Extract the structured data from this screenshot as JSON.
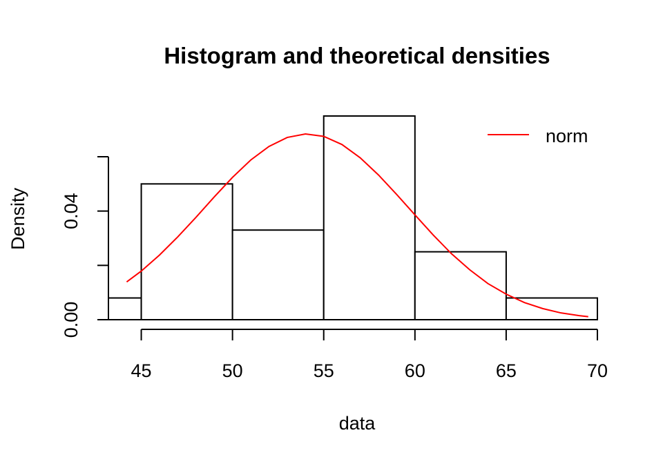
{
  "chart_data": {
    "type": "histogram",
    "title": "Histogram and theoretical densities",
    "xlabel": "data",
    "ylabel": "Density",
    "xlim": [
      43.2,
      70
    ],
    "ylim": [
      0,
      0.075
    ],
    "x_ticks": [
      45,
      50,
      55,
      60,
      65,
      70
    ],
    "x_tick_labels": [
      "45",
      "50",
      "55",
      "60",
      "65",
      "70"
    ],
    "y_ticks": [
      0,
      0.02,
      0.04,
      0.06
    ],
    "y_tick_labels": [
      "0.00",
      "",
      "0.04",
      ""
    ],
    "bins": [
      {
        "start": 43.2,
        "end": 45,
        "density": 0.008
      },
      {
        "start": 45,
        "end": 50,
        "density": 0.05
      },
      {
        "start": 50,
        "end": 55,
        "density": 0.033
      },
      {
        "start": 55,
        "end": 60,
        "density": 0.075
      },
      {
        "start": 60,
        "end": 65,
        "density": 0.025
      },
      {
        "start": 65,
        "end": 70,
        "density": 0.008
      }
    ],
    "series": [
      {
        "name": "norm",
        "kind": "density-curve",
        "color": "#ff0000",
        "x": [
          44.2,
          45,
          46,
          47,
          48,
          49,
          50,
          51,
          52,
          53,
          54,
          55,
          56,
          57,
          58,
          59,
          60,
          61,
          62,
          63,
          64,
          65,
          66,
          67,
          68,
          69,
          69.5
        ],
        "y": [
          0.0139,
          0.0179,
          0.0238,
          0.0305,
          0.0377,
          0.0452,
          0.0524,
          0.0588,
          0.0638,
          0.0671,
          0.0684,
          0.0675,
          0.0645,
          0.0596,
          0.0533,
          0.0461,
          0.0386,
          0.0312,
          0.0243,
          0.0184,
          0.0133,
          0.0094,
          0.0063,
          0.0041,
          0.0025,
          0.0015,
          0.0011
        ]
      }
    ],
    "legend": {
      "position": "top-right",
      "entries": [
        {
          "label": "norm",
          "color": "#ff0000"
        }
      ]
    }
  }
}
